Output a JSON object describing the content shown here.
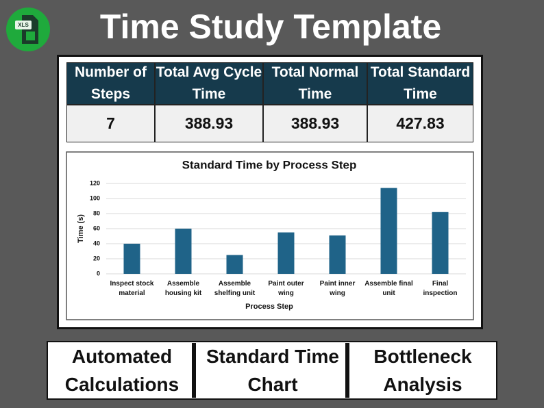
{
  "header": {
    "icon_label": "XLS",
    "title": "Time Study Template"
  },
  "table": {
    "headers": [
      "Number of Steps",
      "Total Avg Cycle Time",
      "Total Normal Time",
      "Total Standard Time"
    ],
    "rows": [
      [
        7,
        388.93,
        388.93,
        427.83
      ]
    ]
  },
  "chart_data": {
    "type": "bar",
    "title": "Standard Time by Process Step",
    "x_label": "Process Step",
    "y_label": "Time (s)",
    "categories": [
      "Inspect stock material",
      "Assemble housing kit",
      "Assemble shelfing unit",
      "Paint outer wing",
      "Paint inner wing",
      "Assemble final unit",
      "Final inspection"
    ],
    "values": [
      40,
      60,
      25,
      55,
      51,
      114,
      82
    ],
    "color": "#1f6388",
    "ylim": [
      0,
      120
    ],
    "yticks": [
      0,
      20,
      40,
      60,
      80,
      100,
      120
    ],
    "grid": true
  },
  "features": [
    "Automated Calculations",
    "Standard Time Chart",
    "Bottleneck Analysis"
  ]
}
